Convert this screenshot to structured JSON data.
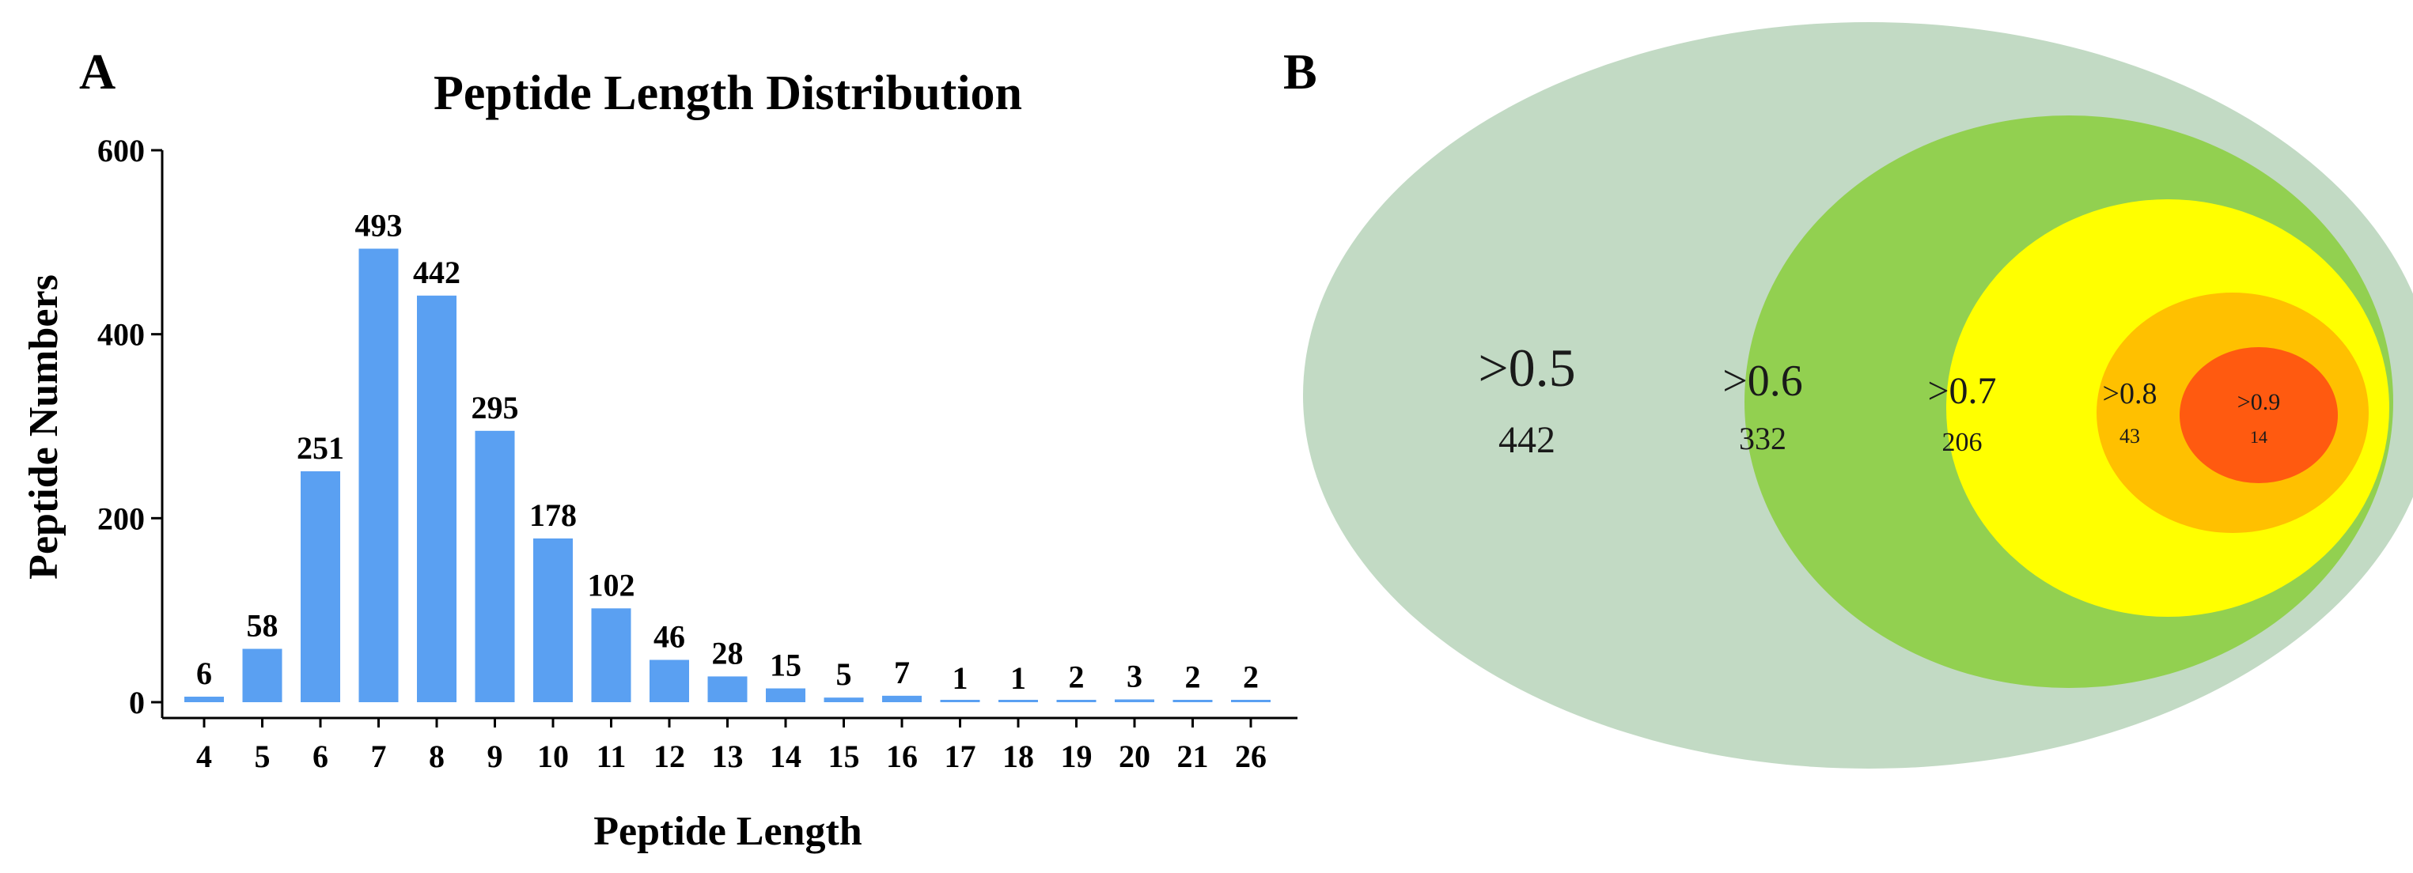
{
  "panels": {
    "a_letter": "A",
    "b_letter": "B"
  },
  "chart_data": [
    {
      "type": "bar",
      "title": "Peptide Length Distribution",
      "xlabel": "Peptide Length",
      "ylabel": "Peptide Numbers",
      "categories": [
        "4",
        "5",
        "6",
        "7",
        "8",
        "9",
        "10",
        "11",
        "12",
        "13",
        "14",
        "15",
        "16",
        "17",
        "18",
        "19",
        "20",
        "21",
        "26"
      ],
      "values": [
        6,
        58,
        251,
        493,
        442,
        295,
        178,
        102,
        46,
        28,
        15,
        5,
        7,
        1,
        1,
        2,
        3,
        2,
        2
      ],
      "yticks": [
        0,
        200,
        400,
        600
      ],
      "ylim": [
        0,
        600
      ],
      "grid": false,
      "colors": {
        "bar": "#5aa0f2"
      }
    },
    {
      "type": "nested-ellipses",
      "levels": [
        {
          "label": ">0.5",
          "value": "442",
          "color": "#c2dac4"
        },
        {
          "label": ">0.6",
          "value": "332",
          "color": "#92d050"
        },
        {
          "label": ">0.7",
          "value": "206",
          "color": "#ffff00"
        },
        {
          "label": ">0.8",
          "value": "43",
          "color": "#ffc000"
        },
        {
          "label": ">0.9",
          "value": "14",
          "color": "#ff5a10"
        }
      ]
    }
  ]
}
